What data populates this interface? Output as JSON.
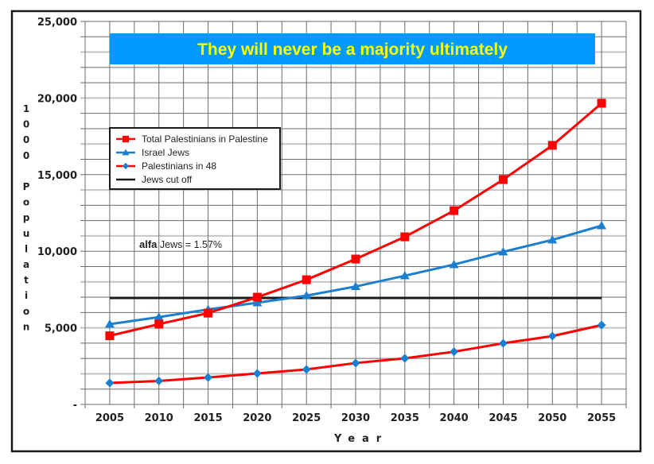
{
  "chart_data": {
    "type": "line",
    "title": "They will never be a majority ultimately",
    "title_colors": {
      "background": "#0099ff",
      "text": "#ffff00"
    },
    "xlabel": "Year",
    "ylabel": "1000 Population",
    "ylabel_parts": [
      "1000",
      "Population"
    ],
    "categories": [
      "2005",
      "2010",
      "2015",
      "2020",
      "2025",
      "2030",
      "2035",
      "2040",
      "2045",
      "2050",
      "2055"
    ],
    "ylim": [
      0,
      25000
    ],
    "y_ticks": [
      0,
      5000,
      10000,
      15000,
      20000,
      25000
    ],
    "y_tick_labels": [
      "-",
      "5,000",
      "10,000",
      "15,000",
      "20,000",
      "25,000"
    ],
    "grid": true,
    "legend_position": "upper-left",
    "series": [
      {
        "name": "Total Palestinians in Palestine",
        "color": "#ff0000",
        "marker": "square",
        "marker_color": "#ff0000",
        "values": [
          4480,
          5240,
          5960,
          7000,
          8140,
          9490,
          10940,
          12650,
          14680,
          16910,
          19660
        ]
      },
      {
        "name": "Israel Jews",
        "color": "#1a7fd0",
        "marker": "triangle",
        "marker_color": "#1a7fd0",
        "values": [
          5240,
          5700,
          6200,
          6640,
          7100,
          7700,
          8400,
          9130,
          9960,
          10740,
          11670
        ]
      },
      {
        "name": "Palestinians in 48",
        "color": "#ff0000",
        "marker": "diamond",
        "marker_color": "#1a7fd0",
        "values": [
          1400,
          1530,
          1760,
          2020,
          2280,
          2700,
          3010,
          3440,
          3990,
          4460,
          5180
        ]
      },
      {
        "name": "Jews cut off",
        "color": "#1a1a1a",
        "marker": "none",
        "marker_color": "#1a1a1a",
        "values": [
          6950,
          6950,
          6950,
          6950,
          6950,
          6950,
          6950,
          6950,
          6950,
          6950,
          6950
        ]
      }
    ],
    "annotations": [
      {
        "bold": "alfa",
        "text": " Jews = 1.57%"
      }
    ]
  }
}
